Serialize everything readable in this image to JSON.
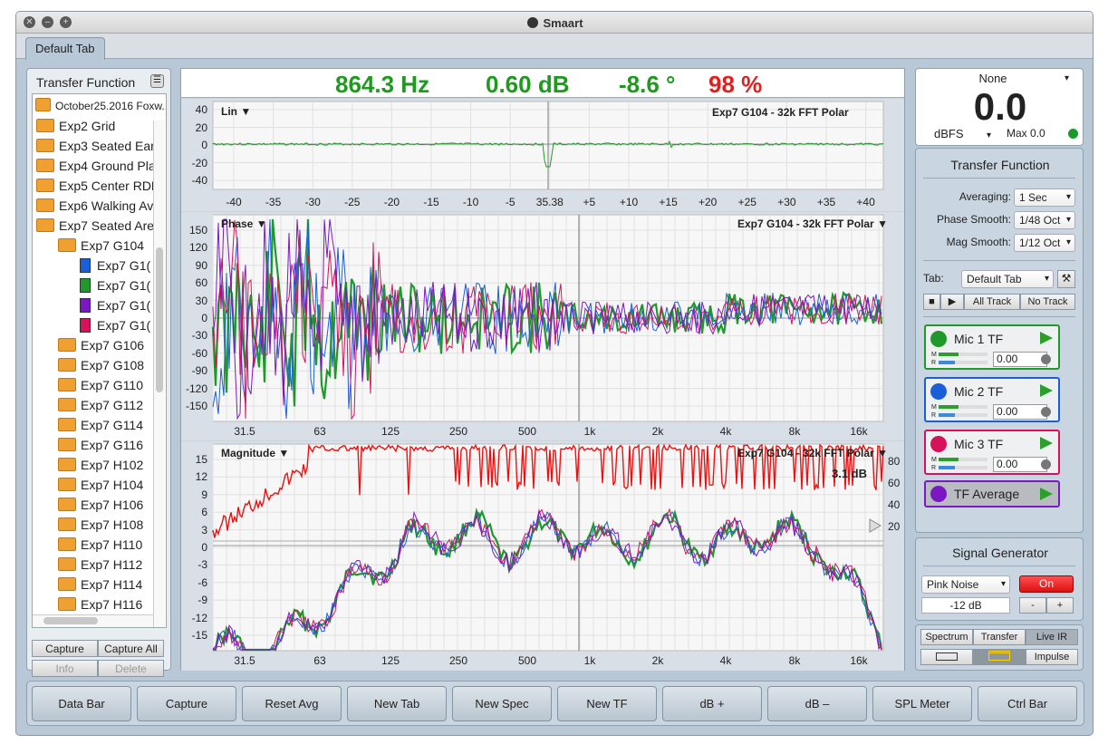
{
  "window": {
    "title": "Smaart"
  },
  "tabs": [
    {
      "label": "Default Tab"
    }
  ],
  "left_panel": {
    "title": "Transfer Function",
    "session": "October25.2016 Foxw...",
    "items": [
      {
        "label": "Exp2 Grid",
        "kind": "folder",
        "level": 0
      },
      {
        "label": "Exp3 Seated Ear",
        "kind": "folder",
        "level": 0
      },
      {
        "label": "Exp4 Ground Pla",
        "kind": "folder",
        "level": 0
      },
      {
        "label": "Exp5 Center RDM",
        "kind": "folder",
        "level": 0
      },
      {
        "label": "Exp6 Walking Av",
        "kind": "folder",
        "level": 0
      },
      {
        "label": "Exp7 Seated Are",
        "kind": "folder-open",
        "level": 0
      },
      {
        "label": "Exp7 G104",
        "kind": "folder-open",
        "level": 1
      },
      {
        "label": "Exp7 G1(",
        "kind": "doc",
        "color": "#1a5fd8",
        "level": 2
      },
      {
        "label": "Exp7 G1(",
        "kind": "doc",
        "color": "#1f9a2a",
        "level": 2
      },
      {
        "label": "Exp7 G1(",
        "kind": "doc",
        "color": "#7a18c4",
        "level": 2
      },
      {
        "label": "Exp7 G1(",
        "kind": "doc",
        "color": "#d8125a",
        "level": 2
      },
      {
        "label": "Exp7 G106",
        "kind": "folder",
        "level": 1
      },
      {
        "label": "Exp7 G108",
        "kind": "folder",
        "level": 1
      },
      {
        "label": "Exp7 G110",
        "kind": "folder",
        "level": 1
      },
      {
        "label": "Exp7 G112",
        "kind": "folder",
        "level": 1
      },
      {
        "label": "Exp7 G114",
        "kind": "folder",
        "level": 1
      },
      {
        "label": "Exp7 G116",
        "kind": "folder",
        "level": 1
      },
      {
        "label": "Exp7 H102",
        "kind": "folder",
        "level": 1
      },
      {
        "label": "Exp7 H104",
        "kind": "folder",
        "level": 1
      },
      {
        "label": "Exp7 H106",
        "kind": "folder",
        "level": 1
      },
      {
        "label": "Exp7 H108",
        "kind": "folder",
        "level": 1
      },
      {
        "label": "Exp7 H110",
        "kind": "folder",
        "level": 1
      },
      {
        "label": "Exp7 H112",
        "kind": "folder",
        "level": 1
      },
      {
        "label": "Exp7 H114",
        "kind": "folder",
        "level": 1
      },
      {
        "label": "Exp7 H116",
        "kind": "folder",
        "level": 1
      }
    ],
    "buttons": {
      "capture": "Capture",
      "capture_all": "Capture All",
      "info": "Info",
      "delete": "Delete"
    }
  },
  "data_bar": {
    "frequency": "864.3 Hz",
    "magnitude": "0.60 dB",
    "phase": "-8.6 °",
    "coherence": "98 %",
    "green": "#1e9a1e",
    "red": "#e41e1e"
  },
  "ir_plot": {
    "scale_label": "Lin",
    "title": "Exp7 G104 - 32k FFT Polar",
    "y_ticks": [
      "40",
      "20",
      "0",
      "-20",
      "-40"
    ],
    "x_ticks": [
      "-40",
      "-35",
      "-30",
      "-25",
      "-20",
      "-15",
      "-10",
      "-5",
      "35.38",
      "+5",
      "+10",
      "+15",
      "+20",
      "+25",
      "+30",
      "+35",
      "+40"
    ]
  },
  "phase_plot": {
    "label": "Phase",
    "title": "Exp7 G104 - 32k FFT Polar",
    "y_ticks": [
      "150",
      "120",
      "90",
      "60",
      "30",
      "0",
      "-30",
      "-60",
      "-90",
      "-120",
      "-150"
    ],
    "x_ticks": [
      "31.5",
      "63",
      "125",
      "250",
      "500",
      "1k",
      "2k",
      "4k",
      "8k",
      "16k"
    ]
  },
  "mag_plot": {
    "label": "Magnitude",
    "title": "Exp7 G104 - 32k FFT Polar",
    "readout": "3.1 dB",
    "y_ticks": [
      "15",
      "12",
      "9",
      "6",
      "3",
      "0",
      "-3",
      "-6",
      "-9",
      "-12",
      "-15"
    ],
    "y2_ticks": [
      "80",
      "60",
      "40",
      "20"
    ],
    "x_ticks": [
      "31.5",
      "63",
      "125",
      "250",
      "500",
      "1k",
      "2k",
      "4k",
      "8k",
      "16k"
    ]
  },
  "meter": {
    "source": "None",
    "value": "0.0",
    "unit": "dBFS",
    "max_label": "Max",
    "max_value": "0.0"
  },
  "tf_panel": {
    "title": "Transfer Function",
    "averaging_label": "Averaging:",
    "averaging": "1 Sec",
    "phase_smooth_label": "Phase Smooth:",
    "phase_smooth": "1/48 Oct",
    "mag_smooth_label": "Mag Smooth:",
    "mag_smooth": "1/12 Oct",
    "tab_label": "Tab:",
    "tab": "Default Tab",
    "all_track": "All Track",
    "no_track": "No Track",
    "mics": [
      {
        "name": "Mic 1 TF",
        "value": "0.00",
        "color": "#1f9a2a"
      },
      {
        "name": "Mic 2 TF",
        "value": "0.00",
        "color": "#1a5fd8"
      },
      {
        "name": "Mic 3 TF",
        "value": "0.00",
        "color": "#d8125a"
      }
    ],
    "average": {
      "name": "TF Average",
      "color": "#7a18c4"
    }
  },
  "signal_gen": {
    "title": "Signal Generator",
    "type": "Pink Noise",
    "on_label": "On",
    "level": "-12 dB",
    "minus": "-",
    "plus": "+"
  },
  "mode": {
    "spectrum": "Spectrum",
    "transfer": "Transfer",
    "live_ir": "Live IR",
    "impulse": "Impulse"
  },
  "command_bar": [
    "Data Bar",
    "Capture",
    "Reset Avg",
    "New Tab",
    "New Spec",
    "New TF",
    "dB +",
    "dB –",
    "SPL Meter",
    "Ctrl Bar"
  ]
}
